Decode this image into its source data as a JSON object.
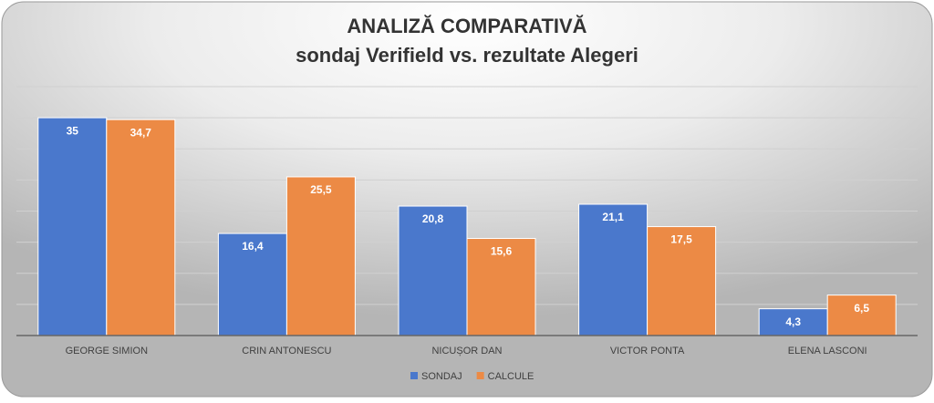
{
  "chart_data": {
    "type": "bar",
    "title": "ANALIZĂ COMPARATIVĂ",
    "subtitle": "sondaj Verifield vs. rezultate Alegeri",
    "categories": [
      "GEORGE SIMION",
      "CRIN ANTONESCU",
      "NICUȘOR DAN",
      "VICTOR PONTA",
      "ELENA LASCONI"
    ],
    "series": [
      {
        "name": "SONDAJ",
        "color": "#4a78cc",
        "values": [
          35,
          16.4,
          20.8,
          21.1,
          4.3
        ],
        "value_labels": [
          "35",
          "16,4",
          "20,8",
          "21,1",
          "4,3"
        ]
      },
      {
        "name": "CALCULE",
        "color": "#ec8a45",
        "values": [
          34.7,
          25.5,
          15.6,
          17.5,
          6.5
        ],
        "value_labels": [
          "34,7",
          "25,5",
          "15,6",
          "17,5",
          "6,5"
        ]
      }
    ],
    "ylim": [
      0,
      40
    ],
    "yticks": [
      0,
      5,
      10,
      15,
      20,
      25,
      30,
      35,
      40
    ],
    "grid": true,
    "legend": "bottom"
  }
}
